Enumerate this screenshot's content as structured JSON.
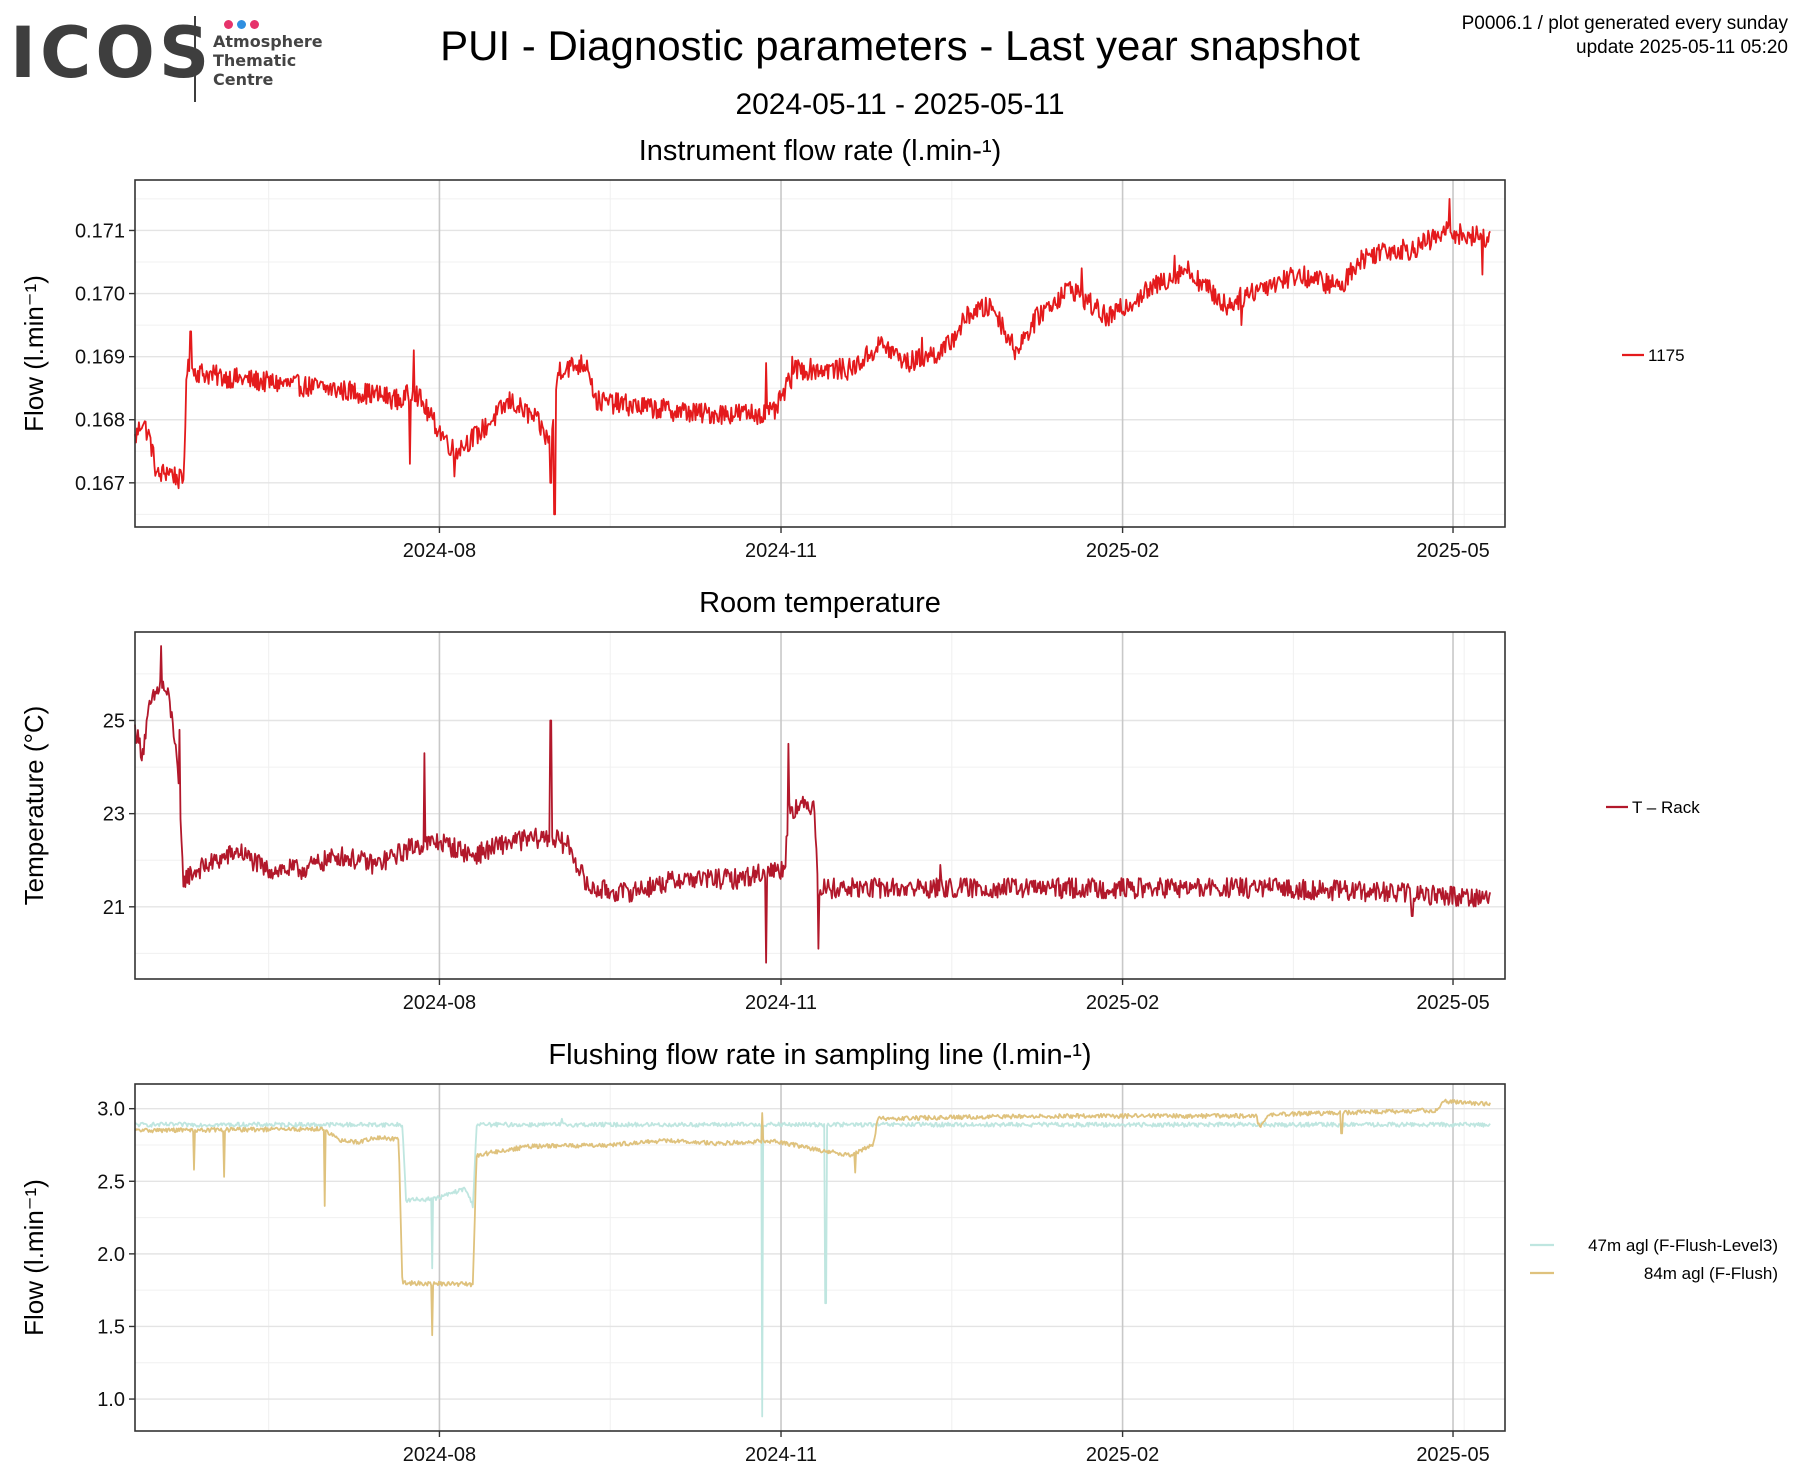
{
  "header": {
    "logo_word": "ICOS",
    "logo_lines": [
      "Atmosphere",
      "Thematic",
      "Centre"
    ],
    "logo_dot_colors": [
      "#e6336b",
      "#2f8fe0",
      "#e6336b"
    ],
    "title": "PUI - Diagnostic parameters - Last year snapshot",
    "date_range": "2024-05-11 - 2025-05-11",
    "product_line": "P0006.1 / plot generated every sunday",
    "update_line": "update  2025-05-11 05:20"
  },
  "chart_data": [
    {
      "type": "line",
      "title": "Instrument flow rate (l.min-¹)",
      "ylabel": "Flow (l.min⁻¹)",
      "xlabel": "",
      "x_start": "2024-05-11",
      "x_end": "2025-05-11",
      "xlim": [
        "2024-05-11",
        "2025-05-15"
      ],
      "ylim": [
        0.1663,
        0.1718
      ],
      "y_ticks": [
        0.167,
        0.168,
        0.169,
        0.17,
        0.171
      ],
      "y_tick_labels": [
        "0.167",
        "0.168",
        "0.169",
        "0.170",
        "0.171"
      ],
      "x_tick_labels": [
        "2024-08",
        "2024-11",
        "2025-02",
        "2025-05"
      ],
      "x_ticks": [
        "2024-08-01",
        "2024-11-01",
        "2025-02-01",
        "2025-05-01"
      ],
      "grid": true,
      "legend_position": "right",
      "noise": 0.00017,
      "series": [
        {
          "name": "1175",
          "color": "#e41a1c",
          "points": [
            [
              "2024-05-11",
              0.1677
            ],
            [
              "2024-05-13",
              0.168
            ],
            [
              "2024-05-15",
              0.1677
            ],
            [
              "2024-05-17",
              0.1671
            ],
            [
              "2024-05-20",
              0.1672
            ],
            [
              "2024-05-24",
              0.167
            ],
            [
              "2024-05-25",
              0.1688
            ],
            [
              "2024-06-01",
              0.1687
            ],
            [
              "2024-06-15",
              0.1686
            ],
            [
              "2024-07-01",
              0.1685
            ],
            [
              "2024-07-15",
              0.1684
            ],
            [
              "2024-07-22",
              0.1683
            ],
            [
              "2024-07-25",
              0.1685
            ],
            [
              "2024-07-30",
              0.168
            ],
            [
              "2024-08-05",
              0.1675
            ],
            [
              "2024-08-12",
              0.1678
            ],
            [
              "2024-08-20",
              0.1683
            ],
            [
              "2024-08-27",
              0.168
            ],
            [
              "2024-08-31",
              0.1676
            ],
            [
              "2024-09-02",
              0.1688
            ],
            [
              "2024-09-10",
              0.1689
            ],
            [
              "2024-09-12",
              0.1683
            ],
            [
              "2024-09-25",
              0.1682
            ],
            [
              "2024-10-10",
              0.1681
            ],
            [
              "2024-10-30",
              0.1681
            ],
            [
              "2024-11-05",
              0.1688
            ],
            [
              "2024-11-20",
              0.1688
            ],
            [
              "2024-11-28",
              0.1692
            ],
            [
              "2024-12-05",
              0.1689
            ],
            [
              "2024-12-15",
              0.1691
            ],
            [
              "2024-12-22",
              0.1697
            ],
            [
              "2024-12-28",
              0.1698
            ],
            [
              "2025-01-03",
              0.1691
            ],
            [
              "2025-01-10",
              0.1697
            ],
            [
              "2025-01-18",
              0.1701
            ],
            [
              "2025-01-28",
              0.1696
            ],
            [
              "2025-02-04",
              0.1699
            ],
            [
              "2025-02-12",
              0.1702
            ],
            [
              "2025-02-18",
              0.1704
            ],
            [
              "2025-03-01",
              0.1698
            ],
            [
              "2025-03-10",
              0.1701
            ],
            [
              "2025-03-20",
              0.1703
            ],
            [
              "2025-04-01",
              0.1701
            ],
            [
              "2025-04-05",
              0.1705
            ],
            [
              "2025-04-12",
              0.1707
            ],
            [
              "2025-04-20",
              0.1707
            ],
            [
              "2025-04-30",
              0.171
            ],
            [
              "2025-05-05",
              0.1709
            ],
            [
              "2025-05-11",
              0.1709
            ]
          ],
          "spikes": [
            [
              "2024-05-26",
              0.1694
            ],
            [
              "2024-07-25",
              0.1691
            ],
            [
              "2024-07-24",
              0.1673
            ],
            [
              "2024-08-05",
              0.1671
            ],
            [
              "2024-09-01",
              0.1665
            ],
            [
              "2024-08-31",
              0.167
            ],
            [
              "2024-10-28",
              0.1689
            ],
            [
              "2024-11-04",
              0.169
            ],
            [
              "2024-12-09",
              0.1693
            ],
            [
              "2025-01-21",
              0.1704
            ],
            [
              "2025-02-15",
              0.1706
            ],
            [
              "2025-04-30",
              0.1715
            ],
            [
              "2025-05-09",
              0.1703
            ],
            [
              "2025-03-05",
              0.1695
            ]
          ]
        }
      ]
    },
    {
      "type": "line",
      "title": "Room temperature",
      "ylabel": "Temperature (°C)",
      "xlabel": "",
      "xlim": [
        "2024-05-11",
        "2025-05-15"
      ],
      "ylim": [
        19.45,
        26.9
      ],
      "y_ticks": [
        21,
        23,
        25
      ],
      "y_tick_labels": [
        "21",
        "23",
        "25"
      ],
      "x_tick_labels": [
        "2024-08",
        "2024-11",
        "2025-02",
        "2025-05"
      ],
      "x_ticks": [
        "2024-08-01",
        "2024-11-01",
        "2025-02-01",
        "2025-05-01"
      ],
      "grid": true,
      "legend_position": "right",
      "noise": 0.22,
      "series": [
        {
          "name": "T – Rack",
          "color": "#b2182b",
          "points": [
            [
              "2024-05-11",
              24.8
            ],
            [
              "2024-05-13",
              24.3
            ],
            [
              "2024-05-15",
              25.3
            ],
            [
              "2024-05-18",
              25.8
            ],
            [
              "2024-05-20",
              25.5
            ],
            [
              "2024-05-22",
              24.5
            ],
            [
              "2024-05-24",
              21.6
            ],
            [
              "2024-05-28",
              21.8
            ],
            [
              "2024-06-08",
              22.2
            ],
            [
              "2024-06-15",
              21.8
            ],
            [
              "2024-06-25",
              21.8
            ],
            [
              "2024-07-05",
              22.1
            ],
            [
              "2024-07-15",
              21.9
            ],
            [
              "2024-07-25",
              22.3
            ],
            [
              "2024-08-01",
              22.4
            ],
            [
              "2024-08-10",
              22.1
            ],
            [
              "2024-08-20",
              22.4
            ],
            [
              "2024-08-31",
              22.5
            ],
            [
              "2024-09-05",
              22.3
            ],
            [
              "2024-09-10",
              21.4
            ],
            [
              "2024-09-20",
              21.3
            ],
            [
              "2024-10-05",
              21.6
            ],
            [
              "2024-10-20",
              21.6
            ],
            [
              "2024-10-31",
              21.8
            ],
            [
              "2024-11-02",
              21.8
            ],
            [
              "2024-11-03",
              23.1
            ],
            [
              "2024-11-10",
              23.2
            ],
            [
              "2024-11-11",
              21.4
            ],
            [
              "2024-12-15",
              21.4
            ],
            [
              "2025-01-15",
              21.4
            ],
            [
              "2025-02-15",
              21.4
            ],
            [
              "2025-03-15",
              21.4
            ],
            [
              "2025-04-15",
              21.3
            ],
            [
              "2025-05-11",
              21.2
            ]
          ],
          "spikes": [
            [
              "2024-05-18",
              26.6
            ],
            [
              "2024-05-23",
              24.8
            ],
            [
              "2024-07-28",
              24.3
            ],
            [
              "2024-08-31",
              25.0
            ],
            [
              "2024-10-28",
              19.8
            ],
            [
              "2024-11-03",
              24.5
            ],
            [
              "2024-11-11",
              20.1
            ],
            [
              "2024-12-14",
              21.9
            ],
            [
              "2025-04-20",
              20.8
            ]
          ]
        }
      ]
    },
    {
      "type": "line",
      "title": "Flushing flow rate in sampling line (l.min-¹)",
      "ylabel": "Flow (l.min⁻¹)",
      "xlabel": "",
      "xlim": [
        "2024-05-11",
        "2025-05-15"
      ],
      "ylim": [
        0.78,
        3.17
      ],
      "y_ticks": [
        1.0,
        1.5,
        2.0,
        2.5,
        3.0
      ],
      "y_tick_labels": [
        "1.0",
        "1.5",
        "2.0",
        "2.5",
        "3.0"
      ],
      "x_tick_labels": [
        "2024-08",
        "2024-11",
        "2025-02",
        "2025-05"
      ],
      "x_ticks": [
        "2024-08-01",
        "2024-11-01",
        "2025-02-01",
        "2025-05-01"
      ],
      "grid": true,
      "legend_position": "right",
      "noise": 0.015,
      "series": [
        {
          "name": "47m agl (F-Flush-Level3)",
          "color": "#bfe6e0",
          "points": [
            [
              "2024-05-11",
              2.89
            ],
            [
              "2024-07-22",
              2.89
            ],
            [
              "2024-07-23",
              2.37
            ],
            [
              "2024-07-31",
              2.38
            ],
            [
              "2024-08-08",
              2.45
            ],
            [
              "2024-08-10",
              2.33
            ],
            [
              "2024-08-11",
              2.89
            ],
            [
              "2025-05-11",
              2.89
            ]
          ],
          "spikes": [
            [
              "2024-07-30",
              1.9
            ],
            [
              "2024-10-27",
              0.88
            ],
            [
              "2024-11-13",
              1.66
            ],
            [
              "2024-09-03",
              2.93
            ]
          ]
        },
        {
          "name": "84m agl (F-Flush)",
          "color": "#dfc27d",
          "points": [
            [
              "2024-05-11",
              2.85
            ],
            [
              "2024-07-01",
              2.86
            ],
            [
              "2024-07-05",
              2.78
            ],
            [
              "2024-07-10",
              2.77
            ],
            [
              "2024-07-15",
              2.8
            ],
            [
              "2024-07-21",
              2.79
            ],
            [
              "2024-07-22",
              1.8
            ],
            [
              "2024-08-10",
              1.79
            ],
            [
              "2024-08-11",
              2.68
            ],
            [
              "2024-08-25",
              2.74
            ],
            [
              "2024-09-15",
              2.75
            ],
            [
              "2024-10-01",
              2.78
            ],
            [
              "2024-10-15",
              2.76
            ],
            [
              "2024-10-30",
              2.78
            ],
            [
              "2024-11-10",
              2.72
            ],
            [
              "2024-11-20",
              2.68
            ],
            [
              "2024-11-26",
              2.76
            ],
            [
              "2024-11-27",
              2.93
            ],
            [
              "2024-12-15",
              2.94
            ],
            [
              "2025-01-15",
              2.95
            ],
            [
              "2025-02-15",
              2.95
            ],
            [
              "2025-03-09",
              2.95
            ],
            [
              "2025-03-10",
              2.86
            ],
            [
              "2025-03-12",
              2.96
            ],
            [
              "2025-04-15",
              2.98
            ],
            [
              "2025-04-27",
              2.99
            ],
            [
              "2025-04-28",
              3.05
            ],
            [
              "2025-05-11",
              3.03
            ]
          ],
          "spikes": [
            [
              "2024-05-27",
              2.58
            ],
            [
              "2024-06-04",
              2.53
            ],
            [
              "2024-07-01",
              2.33
            ],
            [
              "2024-07-30",
              1.44
            ],
            [
              "2024-10-27",
              1.73
            ],
            [
              "2024-10-27",
              2.97
            ],
            [
              "2024-11-21",
              2.56
            ],
            [
              "2025-04-01",
              2.83
            ]
          ]
        }
      ]
    }
  ]
}
